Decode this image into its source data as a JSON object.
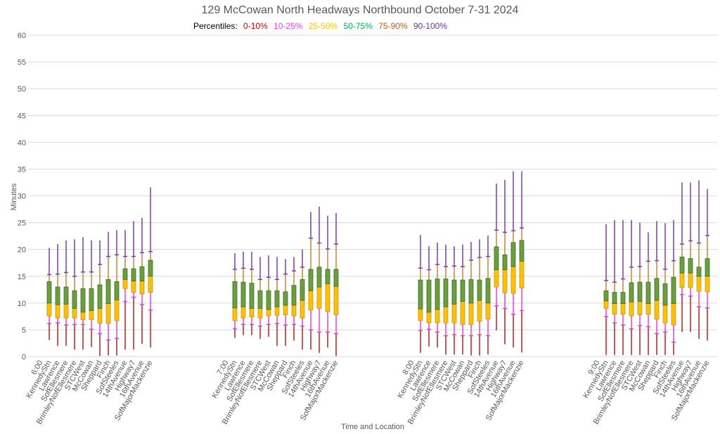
{
  "chart_data": {
    "type": "box",
    "title": "129 McCowan North Headways Northbound October 7-31 2024",
    "legend": {
      "label": "Percentiles:",
      "placement": "top-center",
      "entries": [
        {
          "name": "0-10%",
          "color": "#c00000"
        },
        {
          "name": "10-25%",
          "color": "#e83ee8"
        },
        {
          "name": "25-50%",
          "color": "#ffc000"
        },
        {
          "name": "50-75%",
          "color": "#00b050"
        },
        {
          "name": "75-90%",
          "color": "#c55a11"
        },
        {
          "name": "90-100%",
          "color": "#7030a0"
        }
      ]
    },
    "xlabel": "Time and Location",
    "ylabel": "Minutes",
    "ylim": [
      0,
      60
    ],
    "yticks": [
      0,
      5,
      10,
      15,
      20,
      25,
      30,
      35,
      40,
      45,
      50,
      55,
      60
    ],
    "grid": true,
    "value_order": [
      "min",
      "p10",
      "p25",
      "p50",
      "p75",
      "p90",
      "max"
    ],
    "stations": [
      "KennedyStn",
      "Lawrence",
      "SofEllesmere",
      "BrimleyNofEllesmere",
      "STCWest",
      "McCowan",
      "Sheppard",
      "Finch",
      "SofSteeles",
      "14thAvenue",
      "Highway7",
      "16thAvenue",
      "SofMajorMackenzie"
    ],
    "groups": [
      {
        "hour": "6:00",
        "values": [
          [
            3.1,
            6.2,
            7.6,
            10.0,
            14.0,
            15.3,
            20.3
          ],
          [
            2.0,
            6.3,
            7.2,
            9.7,
            13.0,
            15.4,
            21.0
          ],
          [
            2.0,
            5.9,
            7.2,
            9.8,
            13.0,
            15.7,
            21.7
          ],
          [
            1.3,
            6.0,
            7.2,
            9.0,
            12.3,
            15.0,
            21.9
          ],
          [
            1.3,
            6.0,
            6.9,
            8.3,
            12.7,
            15.8,
            22.3
          ],
          [
            1.8,
            5.1,
            6.9,
            8.6,
            12.7,
            15.8,
            21.7
          ],
          [
            0.1,
            4.3,
            6.2,
            9.0,
            13.4,
            17.2,
            21.7
          ],
          [
            0.2,
            3.1,
            6.2,
            9.9,
            14.4,
            18.7,
            23.3
          ],
          [
            0.2,
            3.4,
            6.7,
            10.6,
            14.0,
            19.0,
            23.6
          ],
          [
            1.3,
            10.3,
            12.7,
            14.4,
            16.4,
            18.7,
            23.6
          ],
          [
            1.3,
            11.1,
            12.0,
            14.1,
            16.4,
            18.7,
            25.3
          ],
          [
            2.4,
            9.7,
            11.7,
            14.1,
            16.8,
            19.4,
            25.9
          ],
          [
            1.7,
            8.7,
            12.0,
            15.0,
            18.0,
            19.6,
            31.6
          ]
        ]
      },
      {
        "hour": "7:00",
        "values": [
          [
            3.5,
            5.2,
            6.7,
            9.1,
            14.0,
            16.3,
            19.3
          ],
          [
            4.0,
            6.0,
            7.2,
            9.3,
            13.9,
            16.5,
            19.6
          ],
          [
            4.0,
            6.0,
            7.4,
            9.0,
            13.7,
            16.3,
            19.6
          ],
          [
            3.3,
            5.7,
            7.2,
            9.0,
            12.3,
            14.4,
            18.6
          ],
          [
            3.7,
            6.0,
            7.6,
            8.8,
            12.3,
            14.8,
            18.9
          ],
          [
            2.0,
            6.2,
            7.7,
            9.3,
            12.3,
            14.4,
            18.6
          ],
          [
            2.0,
            5.9,
            7.8,
            9.6,
            12.1,
            15.4,
            18.2
          ],
          [
            3.0,
            6.0,
            7.6,
            9.6,
            13.3,
            16.0,
            18.6
          ],
          [
            1.3,
            5.7,
            7.2,
            10.5,
            14.4,
            16.7,
            20.0
          ],
          [
            1.3,
            5.0,
            8.7,
            12.3,
            16.3,
            22.1,
            27.0
          ],
          [
            0.7,
            4.6,
            9.0,
            13.0,
            16.7,
            21.2,
            28.0
          ],
          [
            1.7,
            4.6,
            8.4,
            13.6,
            16.3,
            20.1,
            26.3
          ],
          [
            0.1,
            4.3,
            7.8,
            13.1,
            16.3,
            21.0,
            26.8
          ]
        ]
      },
      {
        "hour": "8:00",
        "values": [
          [
            0.7,
            4.9,
            6.7,
            8.9,
            14.3,
            16.5,
            22.7
          ],
          [
            1.9,
            5.1,
            6.3,
            8.3,
            14.3,
            16.2,
            20.6
          ],
          [
            1.7,
            4.6,
            6.3,
            8.8,
            14.5,
            17.2,
            21.3
          ],
          [
            0.4,
            3.9,
            6.3,
            9.3,
            14.5,
            16.8,
            20.9
          ],
          [
            0.4,
            4.1,
            6.3,
            9.8,
            14.3,
            16.9,
            20.6
          ],
          [
            0.4,
            3.9,
            6.0,
            10.3,
            14.3,
            16.8,
            20.9
          ],
          [
            0.2,
            3.9,
            6.0,
            10.0,
            14.4,
            18.0,
            21.4
          ],
          [
            0.2,
            4.1,
            6.6,
            10.5,
            14.3,
            18.5,
            21.9
          ],
          [
            0.4,
            3.9,
            7.0,
            10.0,
            14.6,
            18.7,
            22.6
          ],
          [
            4.9,
            9.5,
            13.0,
            16.2,
            20.5,
            23.6,
            32.3
          ],
          [
            2.3,
            9.0,
            11.9,
            16.2,
            19.0,
            23.2,
            33.0
          ],
          [
            1.7,
            7.9,
            11.8,
            16.8,
            21.3,
            23.5,
            34.6
          ],
          [
            0.8,
            8.6,
            12.8,
            17.8,
            21.7,
            24.0,
            34.6
          ]
        ]
      },
      {
        "hour": "9:00",
        "values": [
          [
            0.3,
            7.5,
            9.0,
            10.4,
            12.3,
            14.2,
            24.7
          ],
          [
            0.3,
            6.3,
            7.9,
            9.9,
            12.0,
            13.9,
            25.5
          ],
          [
            0.3,
            5.9,
            7.9,
            9.9,
            12.0,
            14.5,
            25.5
          ],
          [
            0.3,
            5.2,
            7.6,
            10.2,
            13.8,
            16.7,
            25.5
          ],
          [
            0.3,
            5.8,
            7.8,
            10.3,
            13.9,
            16.8,
            25.0
          ],
          [
            0.3,
            5.6,
            7.9,
            9.9,
            13.9,
            17.8,
            23.2
          ],
          [
            0.3,
            4.3,
            7.0,
            10.5,
            14.6,
            17.9,
            25.3
          ],
          [
            0.3,
            4.6,
            6.3,
            9.6,
            13.6,
            16.3,
            24.9
          ],
          [
            0.3,
            2.7,
            5.9,
            9.9,
            14.8,
            17.9,
            25.5
          ],
          [
            4.6,
            11.6,
            12.9,
            15.6,
            18.6,
            21.0,
            32.5
          ],
          [
            4.6,
            11.3,
            12.9,
            15.6,
            18.3,
            21.6,
            32.5
          ],
          [
            3.3,
            9.3,
            12.2,
            15.0,
            16.7,
            21.2,
            32.9
          ],
          [
            3.0,
            9.1,
            12.1,
            15.0,
            18.3,
            22.6,
            31.3
          ]
        ]
      }
    ]
  },
  "style": {
    "line_min": "#b22222",
    "line_p10": "#e040e0",
    "box_low": "#ffc000",
    "box_low_border": "#c8941a",
    "box_high": "#6a9e3f",
    "box_high_border": "#3d6b22",
    "line_p75": "#c8823c",
    "line_p90": "#7a3fa8",
    "grid": "#d9d9d9"
  }
}
